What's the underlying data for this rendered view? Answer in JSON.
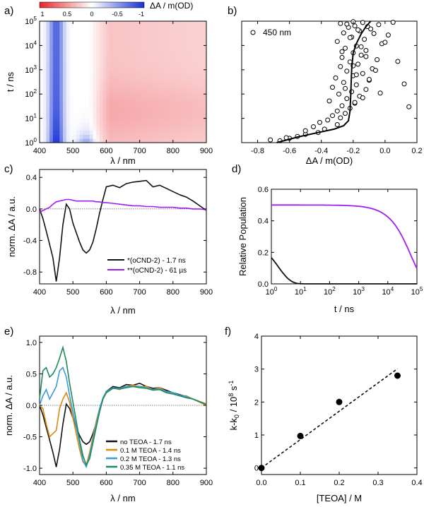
{
  "figure": {
    "panel_letters": [
      "a)",
      "b)",
      "c)",
      "d)",
      "e)",
      "f)"
    ]
  },
  "chart_data": [
    {
      "panel": "a)",
      "type": "heatmap",
      "xlabel": "λ / nm",
      "ylabel": "t / ns",
      "xlim": [
        400,
        900
      ],
      "xticks": [
        400,
        500,
        600,
        700,
        800,
        900
      ],
      "yscale": "log",
      "ylim": [
        1,
        100000
      ],
      "yticks": [
        1,
        10,
        100,
        1000,
        10000,
        100000
      ],
      "ytick_labels": [
        [
          "10",
          "0"
        ],
        [
          "10",
          "1"
        ],
        [
          "10",
          "2"
        ],
        [
          "10",
          "3"
        ],
        [
          "10",
          "4"
        ],
        [
          "10",
          "5"
        ]
      ],
      "colorbar": {
        "label": "ΔA / m(OD)",
        "range": [
          1,
          -1
        ],
        "tick_labels": [
          "1",
          "0.5",
          "0",
          "-0.5",
          "-1"
        ],
        "colors": {
          "positive": "#e8242a",
          "zero": "#ffffff",
          "negative": "#1431d6"
        }
      },
      "features": [
        {
          "name": "ground-state bleach",
          "center_nm": 450,
          "width_nm": 50,
          "t_range_ns": [
            1,
            100000
          ],
          "sign": "negative",
          "peak": -1
        },
        {
          "name": "early bleach",
          "center_nm": 540,
          "width_nm": 60,
          "t_range_ns": [
            1,
            3
          ],
          "sign": "negative",
          "peak": -0.5
        },
        {
          "name": "excited-state absorption",
          "lambda_range_nm": [
            580,
            900
          ],
          "t_range_ns": [
            1,
            100000
          ],
          "sign": "positive",
          "peak": 0.5
        }
      ]
    },
    {
      "panel": "b)",
      "type": "scatter",
      "annotation": "450 nm",
      "xlabel": "ΔA / m(OD)",
      "ylabel": "",
      "xlim": [
        -0.9,
        0.2
      ],
      "xticks": [
        -0.8,
        -0.6,
        -0.4,
        -0.2,
        0.0,
        0.2
      ],
      "xtick_labels": [
        "-0.8",
        "-0.6",
        "-0.4",
        "-0.2",
        "0.0",
        "0.2"
      ],
      "yscale": "log",
      "ylim": [
        1,
        100000
      ],
      "yticks": [
        1,
        10,
        100,
        1000,
        10000,
        100000
      ],
      "ytick_labels": [
        [
          "10",
          "0"
        ],
        [
          "10",
          "1"
        ],
        [
          "10",
          "2"
        ],
        [
          "10",
          "3"
        ],
        [
          "10",
          "4"
        ],
        [
          "10",
          "5"
        ]
      ],
      "points_x": [
        -0.72,
        -0.66,
        -0.6,
        -0.55,
        -0.5,
        -0.42,
        -0.62,
        -0.5,
        -0.38,
        -0.45,
        -0.3,
        -0.41,
        -0.36,
        -0.28,
        -0.33,
        -0.25,
        -0.3,
        -0.22,
        -0.27,
        -0.19,
        -0.35,
        -0.24,
        -0.16,
        -0.29,
        -0.21,
        -0.12,
        -0.33,
        -0.18,
        -0.26,
        -0.1,
        -0.31,
        -0.2,
        -0.14,
        -0.24,
        -0.08,
        -0.28,
        -0.17,
        -0.22,
        -0.05,
        -0.27,
        -0.15,
        -0.2,
        -0.12,
        -0.25,
        -0.18,
        -0.02,
        -0.3,
        -0.13,
        -0.21,
        0.02,
        -0.26,
        -0.16,
        -0.09,
        -0.23,
        -0.19,
        -0.04,
        -0.28,
        -0.14,
        -0.2,
        0.05,
        -0.24,
        -0.11,
        -0.17,
        -0.07,
        -0.22,
        0.0,
        -0.15,
        -0.27,
        -0.12,
        0.08,
        -0.2,
        -0.06,
        -0.18,
        -0.1,
        0.12,
        -0.25,
        -0.03,
        -0.14,
        -0.19,
        0.15
      ],
      "points_t_ns": [
        1.3,
        1.2,
        1.5,
        1.8,
        2.2,
        2.6,
        1.6,
        3.1,
        3.6,
        4.5,
        5.5,
        6.8,
        8.5,
        10.5,
        13,
        16,
        20,
        26,
        33,
        42,
        52,
        65,
        82,
        100,
        125,
        155,
        190,
        240,
        300,
        370,
        460,
        570,
        700,
        880,
        1100,
        1350,
        1700,
        2100,
        2600,
        3200,
        4000,
        5000,
        6200,
        7700,
        9500,
        11800,
        14600,
        18000,
        22000,
        27000,
        33000,
        40000,
        48000,
        56000,
        64000,
        72000,
        80000,
        88000,
        95000,
        90000,
        76000,
        60000,
        44000,
        31000,
        21000,
        13500,
        8800,
        5600,
        3500,
        2200,
        1450,
        950,
        620,
        400,
        260,
        170,
        110,
        70,
        45,
        30
      ],
      "fit_x": [
        -0.68,
        -0.55,
        -0.42,
        -0.32,
        -0.26,
        -0.23,
        -0.22,
        -0.215,
        -0.21,
        -0.2,
        -0.18,
        -0.15,
        -0.12,
        -0.09
      ],
      "fit_t_ns": [
        1,
        1.7,
        2.6,
        3.6,
        5,
        8,
        20,
        100,
        1000,
        5000,
        12000,
        30000,
        60000,
        100000
      ]
    },
    {
      "panel": "c)",
      "type": "line",
      "xlabel": "λ / nm",
      "ylabel": "norm. ΔA / a.u.",
      "xlim": [
        400,
        900
      ],
      "xticks": [
        400,
        500,
        600,
        700,
        800,
        900
      ],
      "ylim": [
        -0.95,
        0.5
      ],
      "yticks": [
        -0.8,
        -0.4,
        0.0,
        0.4
      ],
      "ytick_labels": [
        "-0.8",
        "-0.4",
        "0.0",
        "0.4"
      ],
      "zero_line": true,
      "legend": "bottom-right",
      "x": [
        400,
        410,
        420,
        430,
        440,
        450,
        460,
        470,
        480,
        490,
        500,
        510,
        520,
        530,
        540,
        550,
        560,
        570,
        580,
        590,
        600,
        620,
        640,
        660,
        680,
        700,
        720,
        740,
        760,
        780,
        800,
        820,
        840,
        860,
        880,
        900
      ],
      "series": [
        {
          "name": "*(oCND-2) - 1.7 ns",
          "color": "#111111",
          "values": [
            0.0,
            -0.12,
            -0.28,
            -0.45,
            -0.62,
            -0.92,
            -0.62,
            -0.2,
            0.06,
            0.0,
            -0.18,
            -0.3,
            -0.42,
            -0.52,
            -0.56,
            -0.52,
            -0.42,
            -0.25,
            -0.05,
            0.12,
            0.28,
            0.3,
            0.27,
            0.32,
            0.34,
            0.35,
            0.36,
            0.28,
            0.3,
            0.26,
            0.22,
            0.18,
            0.15,
            0.1,
            0.04,
            -0.02
          ]
        },
        {
          "name": "**(oCND-2) - 61 µs",
          "color": "#a01ff0",
          "values": [
            -0.04,
            -0.02,
            0.0,
            0.02,
            0.06,
            0.09,
            0.1,
            0.11,
            0.12,
            0.12,
            0.11,
            0.1,
            0.1,
            0.1,
            0.1,
            0.1,
            0.1,
            0.09,
            0.09,
            0.08,
            0.08,
            0.07,
            0.06,
            0.05,
            0.04,
            0.04,
            0.03,
            0.03,
            0.02,
            0.02,
            0.02,
            0.01,
            0.01,
            0.0,
            0.0,
            -0.01
          ]
        }
      ]
    },
    {
      "panel": "d)",
      "type": "line",
      "xlabel": "t / ns",
      "ylabel": "Relative Population",
      "xscale": "log",
      "xlim": [
        1,
        100000
      ],
      "xticks": [
        1,
        10,
        100,
        1000,
        10000,
        100000
      ],
      "xtick_labels": [
        [
          "10",
          "0"
        ],
        [
          "10",
          "1"
        ],
        [
          "10",
          "2"
        ],
        [
          "10",
          "3"
        ],
        [
          "10",
          "4"
        ],
        [
          "10",
          "5"
        ]
      ],
      "ylim": [
        0.0,
        0.6
      ],
      "yticks": [
        0.0,
        0.2,
        0.4,
        0.6
      ],
      "ytick_labels": [
        "0.0",
        "0.2",
        "0.4",
        "0.6"
      ],
      "series": [
        {
          "name": "*(oCND-2)",
          "color": "#111111",
          "tau_ns": 1.7,
          "amplitude": 0.3
        },
        {
          "name": "**(oCND-2)",
          "color": "#a01ff0",
          "tau_ns": 61000,
          "amplitude": 0.5
        }
      ]
    },
    {
      "panel": "e)",
      "type": "line",
      "xlabel": "λ / nm",
      "ylabel": "norm. ΔA / a.u.",
      "xlim": [
        400,
        900
      ],
      "xticks": [
        400,
        500,
        600,
        700,
        800,
        900
      ],
      "ylim": [
        -1.1,
        1.1
      ],
      "yticks": [
        -1.0,
        -0.5,
        0.0,
        0.5,
        1.0
      ],
      "ytick_labels": [
        "-1.0",
        "-0.5",
        "0.0",
        "0.5",
        "1.0"
      ],
      "zero_line": true,
      "legend": "bottom-right",
      "x": [
        400,
        410,
        420,
        430,
        440,
        450,
        460,
        470,
        480,
        490,
        500,
        510,
        520,
        530,
        540,
        550,
        560,
        570,
        580,
        590,
        600,
        620,
        640,
        660,
        680,
        700,
        720,
        740,
        760,
        780,
        800,
        820,
        840,
        860,
        880,
        900
      ],
      "series": [
        {
          "name": "no TEOA - 1.7 ns",
          "color": "#111111",
          "values": [
            0.0,
            -0.15,
            -0.35,
            -0.55,
            -0.75,
            -0.98,
            -0.7,
            -0.3,
            0.02,
            -0.05,
            -0.2,
            -0.35,
            -0.48,
            -0.58,
            -0.62,
            -0.58,
            -0.45,
            -0.28,
            -0.08,
            0.1,
            0.22,
            0.3,
            0.28,
            0.33,
            0.32,
            0.35,
            0.3,
            0.27,
            0.28,
            0.24,
            0.2,
            0.17,
            0.14,
            0.1,
            0.05,
            0.0
          ]
        },
        {
          "name": "0.1 M TEOA - 1.4 ns",
          "color": "#d98a0f",
          "values": [
            0.0,
            -0.05,
            -0.3,
            -0.5,
            -0.45,
            -0.4,
            -0.05,
            0.1,
            0.2,
            0.05,
            -0.2,
            -0.45,
            -0.7,
            -0.9,
            -0.95,
            -0.75,
            -0.5,
            -0.25,
            -0.05,
            0.1,
            0.2,
            0.28,
            0.25,
            0.3,
            0.32,
            0.3,
            0.3,
            0.25,
            0.28,
            0.22,
            0.2,
            0.15,
            0.15,
            0.1,
            0.05,
            0.0
          ]
        },
        {
          "name": "0.2 M TEOA - 1.3 ns",
          "color": "#3c9ad8",
          "values": [
            0.0,
            0.15,
            0.25,
            0.1,
            0.2,
            0.3,
            0.55,
            0.6,
            0.45,
            0.15,
            -0.1,
            -0.35,
            -0.6,
            -0.88,
            -0.98,
            -0.8,
            -0.55,
            -0.3,
            -0.05,
            0.12,
            0.22,
            0.28,
            0.27,
            0.3,
            0.3,
            0.3,
            0.28,
            0.25,
            0.26,
            0.22,
            0.2,
            0.16,
            0.14,
            0.1,
            0.06,
            0.02
          ]
        },
        {
          "name": "0.35 M TEOA - 1.1 ns",
          "color": "#1f8a5a",
          "values": [
            0.1,
            0.55,
            0.6,
            0.45,
            0.5,
            0.6,
            0.75,
            0.92,
            0.7,
            0.35,
            0.05,
            -0.25,
            -0.55,
            -0.8,
            -0.95,
            -0.85,
            -0.6,
            -0.35,
            -0.1,
            0.1,
            0.2,
            0.27,
            0.26,
            0.28,
            0.3,
            0.28,
            0.27,
            0.24,
            0.25,
            0.2,
            0.18,
            0.15,
            0.12,
            0.1,
            0.06,
            0.02
          ]
        }
      ]
    },
    {
      "panel": "f)",
      "type": "scatter",
      "xlabel": "[TEOA] / M",
      "ylabel": "k-k0 / 10^8 s^-1",
      "ylabel_parts": [
        "k-k",
        "0",
        " / 10",
        "8",
        " s",
        "-1"
      ],
      "xlim": [
        0.0,
        0.4
      ],
      "xticks": [
        0.0,
        0.1,
        0.2,
        0.3,
        0.4
      ],
      "xtick_labels": [
        "0.0",
        "0.1",
        "0.2",
        "0.3",
        "0.4"
      ],
      "ylim": [
        -0.2,
        4
      ],
      "yticks": [
        0,
        1,
        2,
        3,
        4
      ],
      "ytick_labels": [
        "0",
        "1",
        "2",
        "3",
        "4"
      ],
      "points_x": [
        0.0,
        0.1,
        0.2,
        0.35
      ],
      "points_y": [
        0.0,
        0.97,
        2.0,
        2.8
      ],
      "fit_line": {
        "slope": 8.6,
        "intercept": 0.0,
        "x_range": [
          0.0,
          0.35
        ],
        "style": "dashed"
      }
    }
  ]
}
